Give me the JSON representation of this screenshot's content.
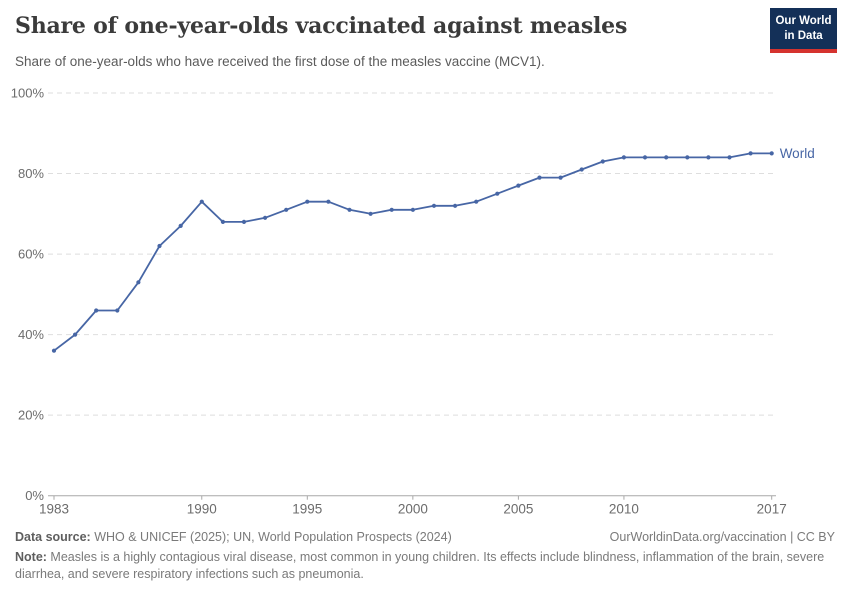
{
  "header": {
    "title": "Share of one-year-olds vaccinated against measles",
    "subtitle": "Share of one-year-olds who have received the first dose of the measles vaccine (MCV1).",
    "logo_line1": "Our World",
    "logo_line2": "in Data"
  },
  "chart_data": {
    "type": "line",
    "title": "Share of one-year-olds vaccinated against measles",
    "series": [
      {
        "name": "World",
        "color": "#4766a5",
        "x": [
          1983,
          1984,
          1985,
          1986,
          1987,
          1988,
          1989,
          1990,
          1991,
          1992,
          1993,
          1994,
          1995,
          1996,
          1997,
          1998,
          1999,
          2000,
          2001,
          2002,
          2003,
          2004,
          2005,
          2006,
          2007,
          2008,
          2009,
          2010,
          2011,
          2012,
          2013,
          2014,
          2015,
          2016,
          2017
        ],
        "values": [
          36,
          40,
          46,
          46,
          53,
          62,
          67,
          73,
          68,
          68,
          69,
          71,
          73,
          73,
          71,
          70,
          71,
          71,
          72,
          72,
          73,
          75,
          77,
          79,
          79,
          81,
          83,
          84,
          84,
          84,
          84,
          84,
          84,
          85,
          85
        ]
      }
    ],
    "x_ticks": [
      1983,
      1990,
      1995,
      2000,
      2005,
      2010,
      2017
    ],
    "y_ticks": [
      0,
      20,
      40,
      60,
      80,
      100
    ],
    "y_tick_suffix": "%",
    "xlim": [
      1983,
      2017
    ],
    "ylim": [
      0,
      100
    ],
    "grid": "horizontal-dashed",
    "legend_position": "end-of-line",
    "end_label": "World",
    "grid_color": "#dedede",
    "axis_color": "#a8a8a8",
    "tick_label_color": "#6c6c6c"
  },
  "footer": {
    "datasource_label": "Data source:",
    "datasource_text": " WHO & UNICEF (2025); UN, World Population Prospects (2024)",
    "link": "OurWorldinData.org/vaccination | CC BY",
    "note_label": "Note:",
    "note_text": " Measles is a highly contagious viral disease, most common in young children. Its effects include blindness, inflammation of the brain, severe diarrhea, and severe respiratory infections such as pneumonia."
  }
}
